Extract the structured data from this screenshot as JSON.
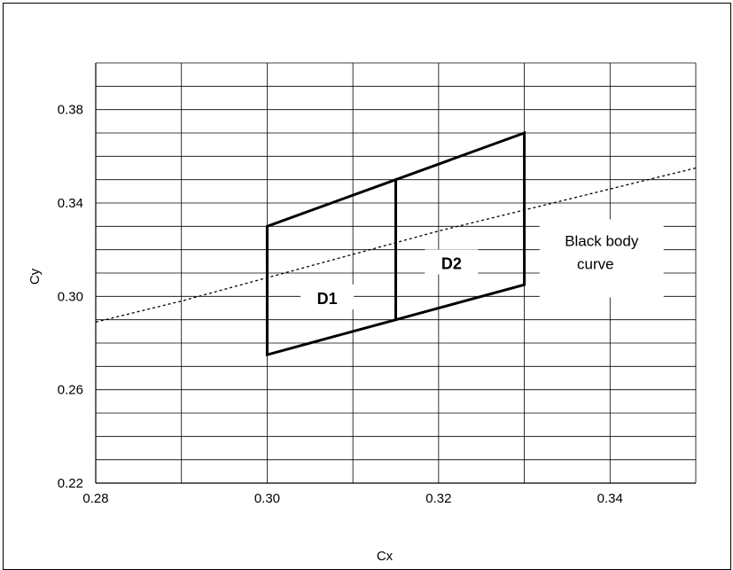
{
  "chart_data": {
    "type": "line",
    "xlabel": "Cx",
    "ylabel": "Cy",
    "xlim": [
      0.28,
      0.35
    ],
    "ylim": [
      0.22,
      0.4
    ],
    "x_ticks": [
      "0.28",
      "0.30",
      "0.32",
      "0.34"
    ],
    "x_tick_values": [
      0.28,
      0.3,
      0.32,
      0.34
    ],
    "y_ticks": [
      "0.22",
      "0.26",
      "0.30",
      "0.34",
      "0.38"
    ],
    "y_tick_values": [
      0.22,
      0.26,
      0.3,
      0.34,
      0.38
    ],
    "x_grid_step": 0.01,
    "y_grid_step": 0.01,
    "grid": true,
    "regions": [
      {
        "name": "D1",
        "label_pos": [
          0.307,
          0.299
        ],
        "points": [
          [
            0.3,
            0.275
          ],
          [
            0.3,
            0.33
          ],
          [
            0.315,
            0.35
          ],
          [
            0.315,
            0.29
          ]
        ]
      },
      {
        "name": "D2",
        "label_pos": [
          0.3215,
          0.314
        ],
        "points": [
          [
            0.315,
            0.29
          ],
          [
            0.315,
            0.35
          ],
          [
            0.33,
            0.37
          ],
          [
            0.33,
            0.305
          ]
        ]
      }
    ],
    "series": [
      {
        "name": "Black body curve",
        "style": "dotted",
        "x": [
          0.28,
          0.29,
          0.3,
          0.31,
          0.32,
          0.33,
          0.34,
          0.35
        ],
        "y": [
          0.289,
          0.298,
          0.308,
          0.318,
          0.328,
          0.337,
          0.346,
          0.355
        ]
      }
    ],
    "annotation": {
      "lines": [
        "Black body",
        "curve"
      ],
      "pos": [
        0.3385,
        0.314
      ]
    }
  }
}
